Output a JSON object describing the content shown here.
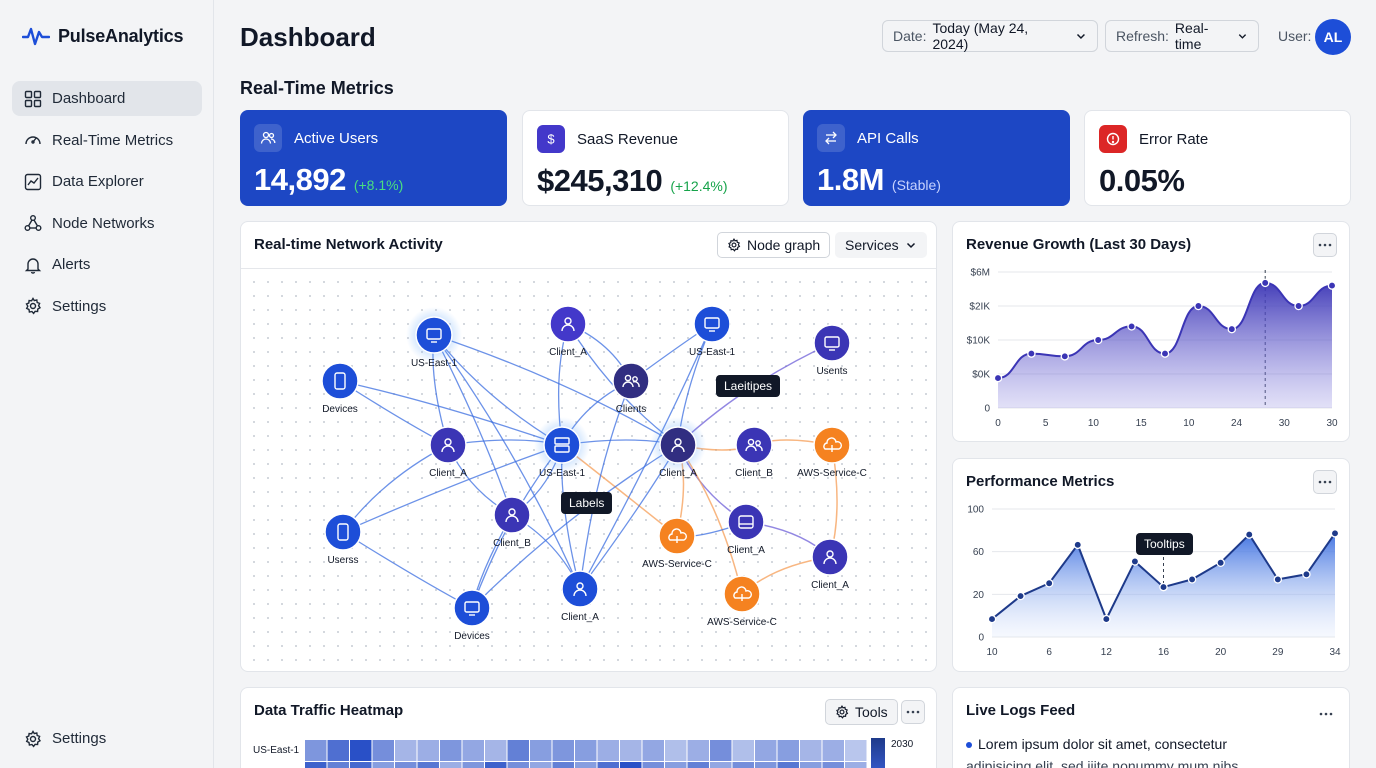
{
  "app": {
    "name": "PulseAnalytics"
  },
  "sidebar": {
    "items": [
      {
        "label": "Dashboard",
        "icon": "grid-icon",
        "active": true
      },
      {
        "label": "Real-Time Metrics",
        "icon": "gauge-icon"
      },
      {
        "label": "Data Explorer",
        "icon": "chart-icon"
      },
      {
        "label": "Node Networks",
        "icon": "network-icon"
      },
      {
        "label": "Alerts",
        "icon": "bell-icon"
      },
      {
        "label": "Settings",
        "icon": "gear-icon"
      }
    ],
    "bottom_settings": "Settings"
  },
  "header": {
    "title": "Dashboard",
    "date_label": "Date:",
    "date_value": "Today (May 24, 2024)",
    "refresh_label": "Refresh:",
    "refresh_value": "Real-time",
    "user_label": "User:",
    "user_initials": "AL"
  },
  "section_title": "Real-Time Metrics",
  "metrics": [
    {
      "title": "Active Users",
      "value": "14,892",
      "delta": "(+8.1%)",
      "icon": "users-icon"
    },
    {
      "title": "SaaS Revenue",
      "value": "$245,310",
      "delta": "(+12.4%)",
      "icon": "dollar-icon"
    },
    {
      "title": "API Calls",
      "value": "1.8M",
      "delta": "(Stable)",
      "icon": "arrows-icon"
    },
    {
      "title": "Error Rate",
      "value": "0.05%",
      "delta": "",
      "icon": "alert-icon"
    }
  ],
  "network": {
    "title": "Real-time Network Activity",
    "view_button": "Node graph",
    "filter_value": "Services",
    "tooltip_1": "Laeitipes",
    "tooltip_2": "Labels",
    "nodes": [
      {
        "label": "US-East-1",
        "kind": "monitor-icon"
      },
      {
        "label": "Client_A",
        "kind": "user-icon"
      },
      {
        "label": "US-East-1",
        "kind": "monitor-icon"
      },
      {
        "label": "Usents",
        "kind": "monitor-icon"
      },
      {
        "label": "Devices",
        "kind": "phone-icon"
      },
      {
        "label": "Clients",
        "kind": "users-icon"
      },
      {
        "label": "Client_A",
        "kind": "user-icon"
      },
      {
        "label": "US-East-1",
        "kind": "server-icon"
      },
      {
        "label": "Client_A",
        "kind": "user-icon"
      },
      {
        "label": "Client_B",
        "kind": "users-icon"
      },
      {
        "label": "AWS-Service-C",
        "kind": "cloud-icon"
      },
      {
        "label": "Client_B",
        "kind": "user-icon"
      },
      {
        "label": "AWS-Service-C",
        "kind": "cloud-icon"
      },
      {
        "label": "Client_A",
        "kind": "drive-icon"
      },
      {
        "label": "Userss",
        "kind": "phone-icon"
      },
      {
        "label": "Client_A",
        "kind": "user-icon"
      },
      {
        "label": "AWS-Service-C",
        "kind": "cloud-icon"
      },
      {
        "label": "Client_A",
        "kind": "user-icon"
      },
      {
        "label": "Devices",
        "kind": "monitor-icon"
      }
    ]
  },
  "revenue": {
    "title": "Revenue Growth (Last 30 Days)",
    "y_ticks": [
      "$6M",
      "$2IK",
      "$10K",
      "$0K",
      "0"
    ],
    "x_ticks": [
      "0",
      "5",
      "10",
      "15",
      "10",
      "24",
      "30",
      "30"
    ]
  },
  "performance": {
    "title": "Performance Metrics",
    "tooltip": "Tooltips",
    "y_ticks": [
      "100",
      "60",
      "20",
      "0"
    ],
    "x_ticks": [
      "10",
      "6",
      "12",
      "16",
      "20",
      "29",
      "34"
    ]
  },
  "heatmap": {
    "title": "Data Traffic Heatmap",
    "tools_label": "Tools",
    "row_label": "US-East-1",
    "scale_label": "2030"
  },
  "logs": {
    "title": "Live Logs Feed",
    "line_1": "Lorem ipsum dolor sit amet, consectetur",
    "line_2": "adipisicing elit, sed iiite nonummy mum nibs"
  },
  "chart_data": [
    {
      "type": "area",
      "title": "Revenue Growth (Last 30 Days)",
      "x_tick_labels": [
        "0",
        "5",
        "10",
        "15",
        "10",
        "24",
        "30",
        "30"
      ],
      "y_tick_labels": [
        "$6M",
        "$2IK",
        "$10K",
        "$0K",
        "0"
      ],
      "points_fraction": [
        0.22,
        0.4,
        0.38,
        0.5,
        0.6,
        0.4,
        0.75,
        0.58,
        0.92,
        0.75,
        0.9
      ],
      "color": "#3b35b5",
      "grid": true
    },
    {
      "type": "area",
      "title": "Performance Metrics",
      "x_tick_labels": [
        "10",
        "6",
        "12",
        "16",
        "20",
        "29",
        "34"
      ],
      "y_tick_labels": [
        "100",
        "60",
        "20",
        "0"
      ],
      "points_fraction": [
        0.14,
        0.32,
        0.42,
        0.72,
        0.14,
        0.59,
        0.39,
        0.45,
        0.58,
        0.8,
        0.45,
        0.49,
        0.81
      ],
      "color": "#1e3a8a",
      "grid": true
    }
  ]
}
